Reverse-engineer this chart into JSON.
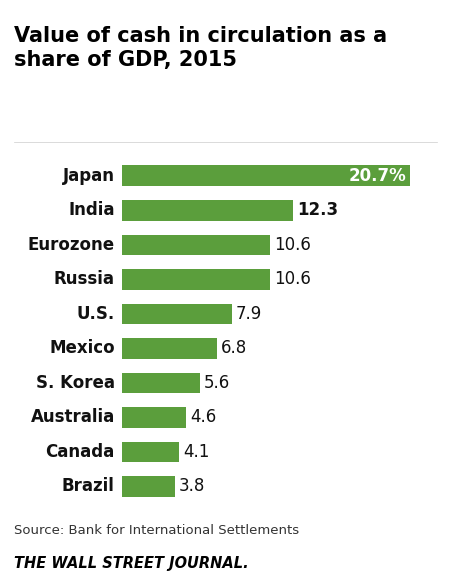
{
  "title": "Value of cash in circulation as a\nshare of GDP, 2015",
  "countries": [
    "Japan",
    "India",
    "Eurozone",
    "Russia",
    "U.S.",
    "Mexico",
    "S. Korea",
    "Australia",
    "Canada",
    "Brazil"
  ],
  "values": [
    20.7,
    12.3,
    10.6,
    10.6,
    7.9,
    6.8,
    5.6,
    4.6,
    4.1,
    3.8
  ],
  "labels": [
    "20.7%",
    "12.3",
    "10.6",
    "10.6",
    "7.9",
    "6.8",
    "5.6",
    "4.6",
    "4.1",
    "3.8"
  ],
  "label_inside": [
    true,
    false,
    false,
    false,
    false,
    false,
    false,
    false,
    false,
    false
  ],
  "bold_countries": [
    true,
    true,
    true,
    true,
    true,
    true,
    true,
    true,
    true,
    true
  ],
  "bold_labels": [
    true,
    true,
    false,
    false,
    false,
    false,
    false,
    false,
    false,
    false
  ],
  "bar_color": "#5b9e3c",
  "text_color_inside": "#ffffff",
  "text_color_outside": "#111111",
  "background_color": "#ffffff",
  "source_text": "Source: Bank for International Settlements",
  "footer_text": "THE WALL STREET JOURNAL.",
  "title_fontsize": 15,
  "label_fontsize": 12,
  "country_fontsize": 12,
  "source_fontsize": 9.5,
  "footer_fontsize": 10.5,
  "xlim": [
    0,
    22
  ]
}
